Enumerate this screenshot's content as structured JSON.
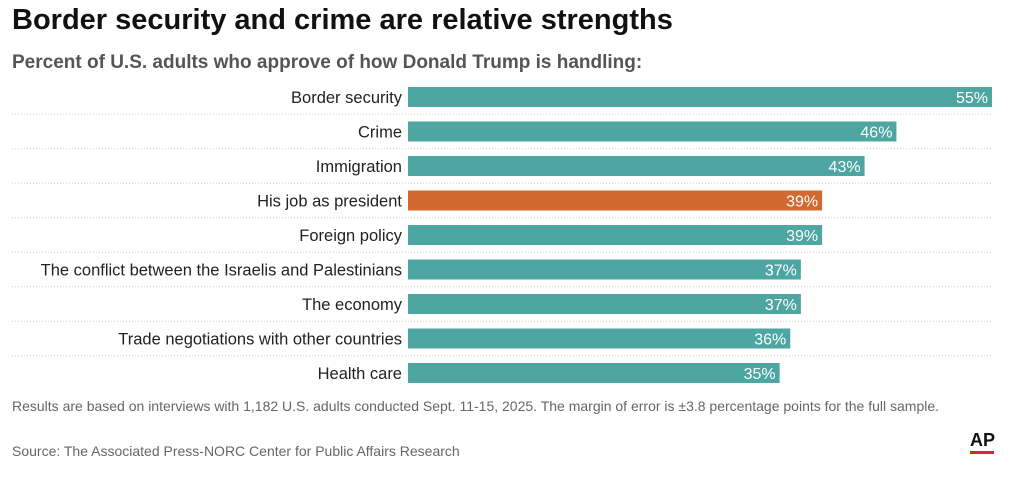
{
  "header": {
    "title": "Border security and crime are relative strengths",
    "subtitle": "Percent of U.S. adults who approve of how Donald Trump is handling:"
  },
  "footer": {
    "note": "Results are based on interviews with 1,182 U.S. adults conducted Sept. 11-15, 2025. The margin of error is ±3.8 percentage points for the full sample.",
    "source": "Source: The Associated Press-NORC Center for Public Affairs Research",
    "logo_text": "AP"
  },
  "colors": {
    "bar": "#4ea6a3",
    "highlight": "#d2692e",
    "logo_underline": "#e0281a"
  },
  "chart_data": {
    "type": "bar",
    "orientation": "horizontal",
    "categories": [
      "Border security",
      "Crime",
      "Immigration",
      "His job as president",
      "Foreign policy",
      "The conflict between the Israelis and Palestinians",
      "The economy",
      "Trade negotiations with other countries",
      "Health care"
    ],
    "values": [
      55,
      46,
      43,
      39,
      39,
      37,
      37,
      36,
      35
    ],
    "value_labels": [
      "55%",
      "46%",
      "43%",
      "39%",
      "39%",
      "37%",
      "37%",
      "36%",
      "35%"
    ],
    "highlight_category": "His job as president",
    "xlim": [
      0,
      55
    ],
    "grid": false,
    "title": "Border security and crime are relative strengths",
    "subtitle": "Percent of U.S. adults who approve of how Donald Trump is handling:"
  }
}
